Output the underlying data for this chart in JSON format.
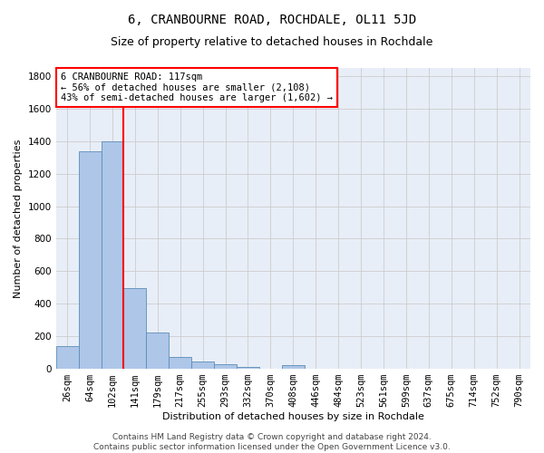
{
  "title": "6, CRANBOURNE ROAD, ROCHDALE, OL11 5JD",
  "subtitle": "Size of property relative to detached houses in Rochdale",
  "xlabel": "Distribution of detached houses by size in Rochdale",
  "ylabel": "Number of detached properties",
  "bar_labels": [
    "26sqm",
    "64sqm",
    "102sqm",
    "141sqm",
    "179sqm",
    "217sqm",
    "255sqm",
    "293sqm",
    "332sqm",
    "370sqm",
    "408sqm",
    "446sqm",
    "484sqm",
    "523sqm",
    "561sqm",
    "599sqm",
    "637sqm",
    "675sqm",
    "714sqm",
    "752sqm",
    "790sqm"
  ],
  "bar_values": [
    140,
    1340,
    1400,
    495,
    225,
    75,
    45,
    28,
    13,
    0,
    20,
    0,
    0,
    0,
    0,
    0,
    0,
    0,
    0,
    0,
    0
  ],
  "bar_color": "#aec6e8",
  "bar_edge_color": "#5b8db8",
  "vline_color": "red",
  "vline_pos": 2.5,
  "annotation_text": "6 CRANBOURNE ROAD: 117sqm\n← 56% of detached houses are smaller (2,108)\n43% of semi-detached houses are larger (1,602) →",
  "annotation_box_color": "white",
  "annotation_box_edge": "red",
  "ylim": [
    0,
    1850
  ],
  "yticks": [
    0,
    200,
    400,
    600,
    800,
    1000,
    1200,
    1400,
    1600,
    1800
  ],
  "grid_color": "#cccccc",
  "bg_color": "#e8eef7",
  "footer": "Contains HM Land Registry data © Crown copyright and database right 2024.\nContains public sector information licensed under the Open Government Licence v3.0.",
  "title_fontsize": 10,
  "subtitle_fontsize": 9,
  "axis_label_fontsize": 8,
  "tick_fontsize": 7.5,
  "annotation_fontsize": 7.5,
  "footer_fontsize": 6.5
}
